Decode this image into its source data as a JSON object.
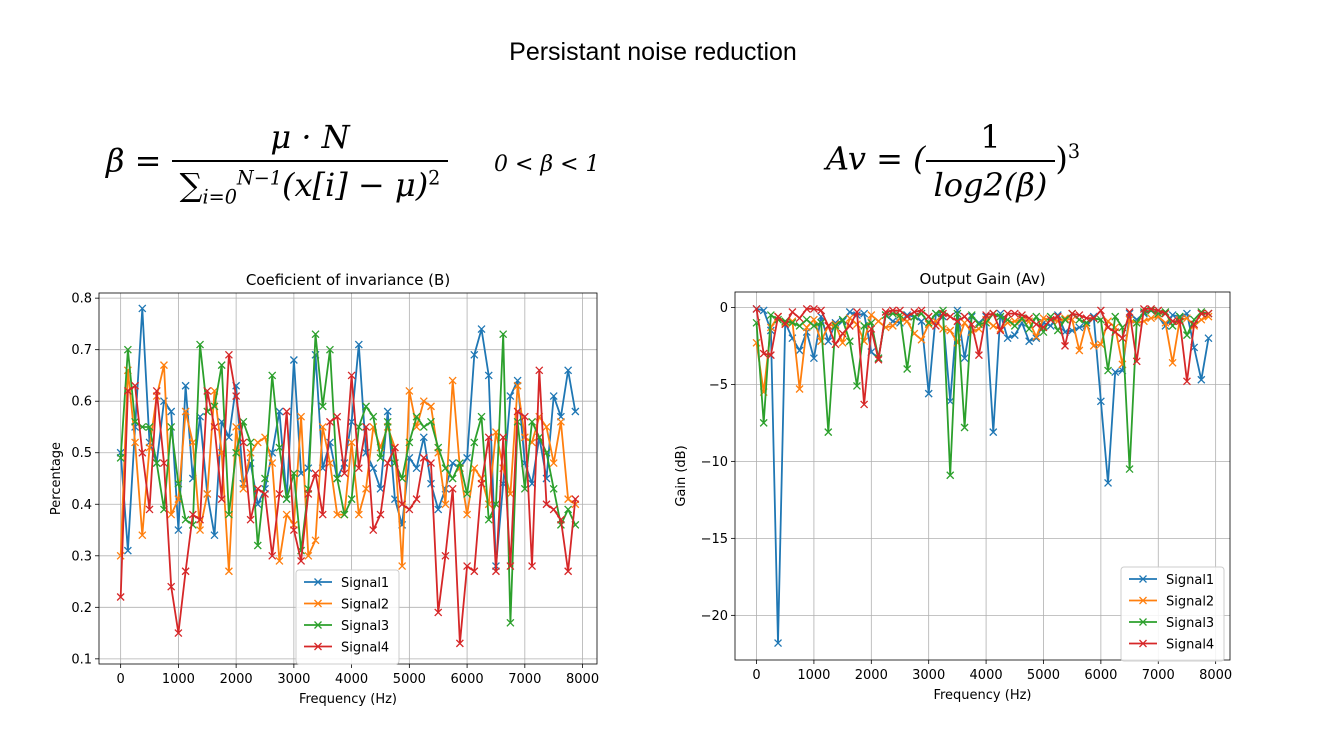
{
  "slide": {
    "title": "Persistant noise reduction"
  },
  "formulas": {
    "beta_lhs": "β =",
    "beta_numerator": "μ · N",
    "beta_sum": "∑",
    "beta_sum_upper": "N−1",
    "beta_sum_lower": "i=0",
    "beta_denominator": "(x[i] − μ)",
    "beta_power": "2",
    "beta_range": "0 < β < 1",
    "av_lhs": "Av = (",
    "av_numerator": "1",
    "av_denominator": "log2(β)",
    "av_rhs": ")",
    "av_power": "3"
  },
  "chart_data": [
    {
      "type": "line",
      "marker": "x",
      "title": "Coeficient of invariance (B)",
      "xlabel": "Frequency (Hz)",
      "ylabel": "Percentage",
      "xlim": [
        -375,
        8250
      ],
      "ylim": [
        0.09,
        0.81
      ],
      "xticks": [
        0,
        1000,
        2000,
        3000,
        4000,
        5000,
        6000,
        7000,
        8000
      ],
      "yticks": [
        0.1,
        0.2,
        0.3,
        0.4,
        0.5,
        0.6,
        0.7,
        0.8
      ],
      "xtick_labels": [
        "0",
        "1000",
        "2000",
        "3000",
        "4000",
        "5000",
        "6000",
        "7000",
        "8000"
      ],
      "ytick_labels": [
        "0.1",
        "0.2",
        "0.3",
        "0.4",
        "0.5",
        "0.6",
        "0.7",
        "0.8"
      ],
      "grid": true,
      "legend_position": "lower-center",
      "x": [
        0,
        125,
        250,
        375,
        500,
        625,
        750,
        875,
        1000,
        1125,
        1250,
        1375,
        1500,
        1625,
        1750,
        1875,
        2000,
        2125,
        2250,
        2375,
        2500,
        2625,
        2750,
        2875,
        3000,
        3125,
        3250,
        3375,
        3500,
        3625,
        3750,
        3875,
        4000,
        4125,
        4250,
        4375,
        4500,
        4625,
        4750,
        4875,
        5000,
        5125,
        5250,
        5375,
        5500,
        5625,
        5750,
        5875,
        6000,
        6125,
        6250,
        6375,
        6500,
        6625,
        6750,
        6875,
        7000,
        7125,
        7250,
        7375,
        7500,
        7625,
        7750,
        7875
      ],
      "series": [
        {
          "name": "Signal1",
          "color": "#1f77b4",
          "values": [
            0.5,
            0.31,
            0.55,
            0.78,
            0.52,
            0.48,
            0.6,
            0.58,
            0.35,
            0.63,
            0.45,
            0.57,
            0.42,
            0.34,
            0.56,
            0.53,
            0.63,
            0.44,
            0.48,
            0.4,
            0.43,
            0.5,
            0.58,
            0.41,
            0.68,
            0.46,
            0.47,
            0.69,
            0.47,
            0.52,
            0.45,
            0.48,
            0.56,
            0.71,
            0.5,
            0.47,
            0.43,
            0.58,
            0.41,
            0.36,
            0.49,
            0.47,
            0.53,
            0.44,
            0.39,
            0.43,
            0.48,
            0.47,
            0.49,
            0.69,
            0.74,
            0.65,
            0.28,
            0.44,
            0.61,
            0.64,
            0.48,
            0.44,
            0.53,
            0.45,
            0.61,
            0.57,
            0.66,
            0.58
          ]
        },
        {
          "name": "Signal2",
          "color": "#ff7f0e",
          "values": [
            0.3,
            0.66,
            0.52,
            0.34,
            0.51,
            0.61,
            0.67,
            0.38,
            0.41,
            0.58,
            0.52,
            0.35,
            0.42,
            0.62,
            0.5,
            0.27,
            0.55,
            0.43,
            0.5,
            0.52,
            0.53,
            0.48,
            0.29,
            0.38,
            0.36,
            0.57,
            0.3,
            0.33,
            0.55,
            0.48,
            0.38,
            0.38,
            0.52,
            0.38,
            0.43,
            0.55,
            0.51,
            0.55,
            0.51,
            0.28,
            0.62,
            0.55,
            0.6,
            0.59,
            0.5,
            0.4,
            0.64,
            0.47,
            0.38,
            0.47,
            0.45,
            0.4,
            0.54,
            0.47,
            0.42,
            0.63,
            0.53,
            0.52,
            0.57,
            0.55,
            0.48,
            0.56,
            0.41,
            0.4
          ]
        },
        {
          "name": "Signal3",
          "color": "#2ca02c",
          "values": [
            0.49,
            0.7,
            0.56,
            0.55,
            0.55,
            0.48,
            0.39,
            0.55,
            0.44,
            0.37,
            0.36,
            0.71,
            0.58,
            0.59,
            0.67,
            0.38,
            0.5,
            0.56,
            0.52,
            0.32,
            0.45,
            0.65,
            0.51,
            0.41,
            0.46,
            0.31,
            0.43,
            0.73,
            0.59,
            0.7,
            0.45,
            0.38,
            0.41,
            0.55,
            0.59,
            0.57,
            0.49,
            0.56,
            0.48,
            0.45,
            0.52,
            0.57,
            0.55,
            0.56,
            0.51,
            0.47,
            0.45,
            0.48,
            0.42,
            0.52,
            0.57,
            0.37,
            0.4,
            0.73,
            0.17,
            0.56,
            0.43,
            0.56,
            0.53,
            0.5,
            0.43,
            0.36,
            0.39,
            0.36
          ]
        },
        {
          "name": "Signal4",
          "color": "#d62728",
          "values": [
            0.22,
            0.62,
            0.63,
            0.5,
            0.39,
            0.62,
            0.48,
            0.24,
            0.15,
            0.27,
            0.38,
            0.37,
            0.62,
            0.55,
            0.41,
            0.69,
            0.61,
            0.52,
            0.37,
            0.43,
            0.42,
            0.3,
            0.42,
            0.58,
            0.35,
            0.29,
            0.42,
            0.46,
            0.38,
            0.56,
            0.57,
            0.46,
            0.65,
            0.47,
            0.55,
            0.35,
            0.38,
            0.48,
            0.51,
            0.4,
            0.39,
            0.41,
            0.49,
            0.48,
            0.19,
            0.3,
            0.43,
            0.13,
            0.28,
            0.27,
            0.44,
            0.53,
            0.27,
            0.53,
            0.28,
            0.58,
            0.57,
            0.28,
            0.66,
            0.4,
            0.39,
            0.37,
            0.27,
            0.41
          ]
        }
      ]
    },
    {
      "type": "line",
      "marker": "x",
      "title": "Output Gain (Av)",
      "xlabel": "Frequency (Hz)",
      "ylabel": "Gain (dB)",
      "xlim": [
        -375,
        8250
      ],
      "ylim": [
        -22.9,
        1.0
      ],
      "xticks": [
        0,
        1000,
        2000,
        3000,
        4000,
        5000,
        6000,
        7000,
        8000
      ],
      "yticks": [
        0,
        -5,
        -10,
        -15,
        -20
      ],
      "xtick_labels": [
        "0",
        "1000",
        "2000",
        "3000",
        "4000",
        "5000",
        "6000",
        "7000",
        "8000"
      ],
      "ytick_labels": [
        "0",
        "−5",
        "−10",
        "−15",
        "−20"
      ],
      "grid": true,
      "legend_position": "lower-right",
      "x": [
        0,
        125,
        250,
        375,
        500,
        625,
        750,
        875,
        1000,
        1125,
        1250,
        1375,
        1500,
        1625,
        1750,
        1875,
        2000,
        2125,
        2250,
        2375,
        2500,
        2625,
        2750,
        2875,
        3000,
        3125,
        3250,
        3375,
        3500,
        3625,
        3750,
        3875,
        4000,
        4125,
        4250,
        4375,
        4500,
        4625,
        4750,
        4875,
        5000,
        5125,
        5250,
        5375,
        5500,
        5625,
        5750,
        5875,
        6000,
        6125,
        6250,
        6375,
        6500,
        6625,
        6750,
        6875,
        7000,
        7125,
        7250,
        7375,
        7500,
        7625,
        7750,
        7875
      ],
      "series": [
        {
          "name": "Signal1",
          "color": "#1f77b4",
          "values": [
            -0.1,
            -0.2,
            -1.5,
            -21.8,
            -1.0,
            -2.0,
            -2.8,
            -1.6,
            -3.3,
            -0.6,
            -2.2,
            -1.0,
            -0.9,
            -0.3,
            -0.5,
            -0.4,
            -2.9,
            -3.3,
            -0.5,
            -0.9,
            -1.0,
            -0.5,
            -0.6,
            -0.9,
            -5.6,
            -0.4,
            -0.6,
            -6.1,
            -0.2,
            -3.3,
            -0.6,
            -1.0,
            -0.6,
            -8.1,
            -0.4,
            -2.0,
            -1.8,
            -1.0,
            -2.2,
            -2.0,
            -1.0,
            -1.2,
            -0.5,
            -1.6,
            -1.5,
            -1.3,
            -1.2,
            -0.6,
            -6.1,
            -11.4,
            -4.2,
            -4.1,
            -0.4,
            -0.8,
            -0.4,
            -0.2,
            -0.6,
            -1.2,
            -0.5,
            -0.6,
            -0.4,
            -2.6,
            -4.7,
            -2.0
          ]
        },
        {
          "name": "Signal2",
          "color": "#ff7f0e",
          "values": [
            -2.3,
            -5.5,
            -1.3,
            -0.6,
            -1.0,
            -0.9,
            -5.3,
            -1.3,
            -0.8,
            -2.2,
            -1.2,
            -1.1,
            -2.3,
            -0.7,
            -1.1,
            -2.2,
            -0.5,
            -0.9,
            -1.3,
            -1.2,
            -0.7,
            -0.9,
            -1.7,
            -2.1,
            -1.1,
            -0.9,
            -1.4,
            -1.5,
            -2.3,
            -1.0,
            -1.6,
            -1.4,
            -0.8,
            -1.2,
            -1.4,
            -1.0,
            -0.9,
            -0.8,
            -0.9,
            -1.9,
            -0.7,
            -0.8,
            -0.9,
            -0.7,
            -0.8,
            -2.8,
            -1.0,
            -2.5,
            -2.4,
            -0.9,
            -1.3,
            -3.7,
            -0.8,
            -1.0,
            -0.9,
            -0.7,
            -0.6,
            -1.0,
            -3.6,
            -0.8,
            -0.7,
            -1.2,
            -0.8,
            -0.6
          ]
        },
        {
          "name": "Signal3",
          "color": "#2ca02c",
          "values": [
            -1.0,
            -7.5,
            -0.5,
            -0.8,
            -0.9,
            -1.0,
            -1.2,
            -0.8,
            -1.2,
            -1.0,
            -8.1,
            -1.2,
            -0.8,
            -2.2,
            -5.1,
            -1.2,
            -1.0,
            -3.3,
            -0.5,
            -0.4,
            -0.5,
            -4.0,
            -0.6,
            -0.4,
            -1.0,
            -0.4,
            -0.2,
            -10.9,
            -0.4,
            -7.8,
            -0.5,
            -1.1,
            -1.0,
            -0.4,
            -0.6,
            -0.8,
            -1.2,
            -0.7,
            -1.4,
            -0.6,
            -1.6,
            -0.6,
            -1.5,
            -0.8,
            -0.4,
            -0.8,
            -1.0,
            -0.7,
            -0.8,
            -4.1,
            -0.6,
            -1.3,
            -10.5,
            -1.0,
            -0.3,
            -0.2,
            -0.4,
            -0.3,
            -1.2,
            -0.6,
            -1.8,
            -0.8,
            -0.3,
            -0.4
          ]
        },
        {
          "name": "Signal4",
          "color": "#d62728",
          "values": [
            -0.1,
            -3.0,
            -3.1,
            -0.6,
            -1.1,
            -0.3,
            -0.7,
            -0.1,
            -0.1,
            -0.2,
            -1.2,
            -2.4,
            -1.7,
            -1.2,
            -0.3,
            -6.3,
            -1.4,
            -3.4,
            -0.3,
            -0.2,
            -0.2,
            -0.6,
            -0.3,
            -0.2,
            -0.6,
            -1.2,
            -0.4,
            -0.6,
            -0.9,
            -0.6,
            -1.1,
            -3.1,
            -0.5,
            -0.4,
            -1.5,
            -0.4,
            -0.4,
            -0.5,
            -0.7,
            -1.1,
            -1.3,
            -0.8,
            -0.6,
            -2.5,
            -0.4,
            -0.5,
            -0.7,
            -0.7,
            -0.2,
            -1.3,
            -1.6,
            -2.0,
            -0.3,
            -3.5,
            -0.1,
            -0.1,
            -0.2,
            -0.4,
            -0.9,
            -0.9,
            -4.8,
            -1.1,
            -0.4,
            -0.4
          ]
        }
      ]
    }
  ]
}
